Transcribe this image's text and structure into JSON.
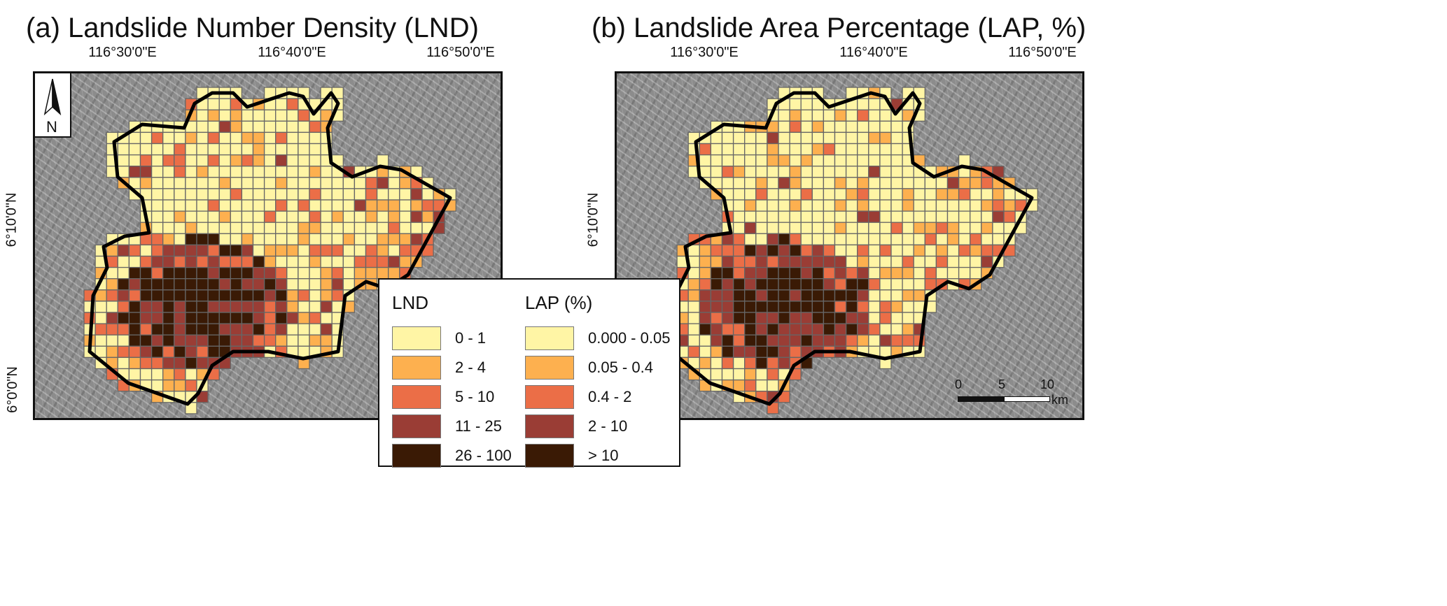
{
  "panels": [
    {
      "title": "(a) Landslide Number Density (LND)"
    },
    {
      "title": "(b) Landslide Area Percentage (LAP, %)"
    }
  ],
  "axes": {
    "lon_ticks": [
      "116°30'0\"E",
      "116°40'0\"E",
      "116°50'0\"E"
    ],
    "lat_ticks": [
      "6°10'0\"N",
      "6°0'0\"N"
    ]
  },
  "north_arrow": {
    "label": "N",
    "icon": "north-arrow-icon"
  },
  "legend": {
    "lnd": {
      "title": "LND",
      "classes": [
        "0 - 1",
        "2 - 4",
        "5 - 10",
        "11 - 25",
        "26 - 100"
      ]
    },
    "lap": {
      "title": "LAP (%)",
      "classes": [
        "0.000 - 0.05",
        "0.05 - 0.4",
        "0.4 - 2",
        "2 - 10",
        "> 10"
      ]
    },
    "colors": [
      "#FFF5A5",
      "#FDB04F",
      "#EB6E47",
      "#9A3D35",
      "#3A1A05"
    ]
  },
  "scale_bar": {
    "labels": [
      "0",
      "5",
      "10"
    ],
    "unit": "km"
  },
  "colors": {
    "boundary": "#000000",
    "grid_line": "#666666",
    "hillshade": "#8c8c8c"
  }
}
